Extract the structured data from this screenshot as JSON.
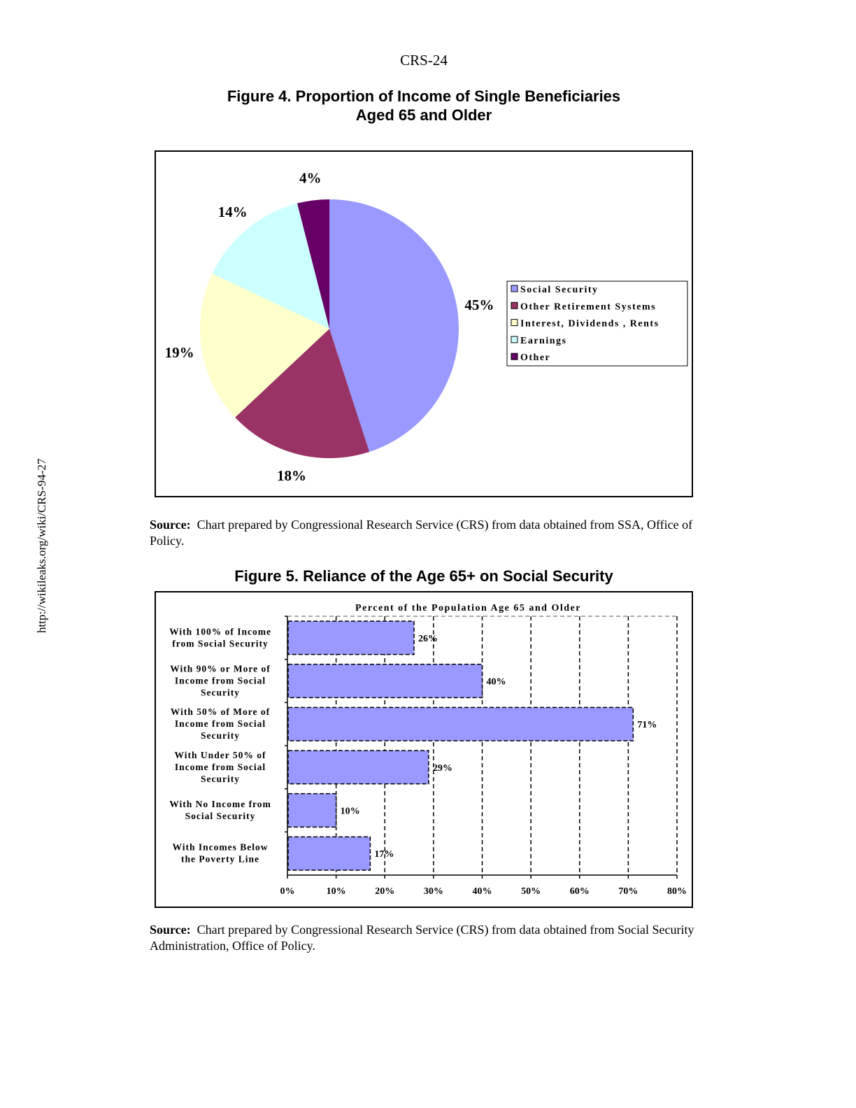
{
  "page_number": "CRS-24",
  "sidebar_url": "http://wikileaks.org/wiki/CRS-94-27",
  "figure4": {
    "title_line1": "Figure 4.  Proportion of Income of Single Beneficiaries",
    "title_line2": "Aged 65 and Older",
    "source_label": "Source:",
    "source_text": "Chart prepared by Congressional Research Service (CRS) from data obtained from SSA, Office of Policy."
  },
  "figure5": {
    "title": "Figure 5. Reliance of the Age 65+ on Social Security",
    "source_label": "Source:",
    "source_text": "Chart prepared by Congressional Research Service (CRS) from data obtained from Social Security Administration, Office of Policy."
  },
  "chart_data": [
    {
      "type": "pie",
      "title": "Figure 4.  Proportion of Income of Single Beneficiaries Aged 65 and Older",
      "legend_position": "right",
      "slices": [
        {
          "name": "Social Security",
          "value": 45,
          "label": "45%",
          "color": "#9999FF"
        },
        {
          "name": "Other Retirement Systems",
          "value": 18,
          "label": "18%",
          "color": "#993366"
        },
        {
          "name": "Interest, Dividends , Rents",
          "value": 19,
          "label": "19%",
          "color": "#FFFFCC"
        },
        {
          "name": "Earnings",
          "value": 14,
          "label": "14%",
          "color": "#CCFFFF"
        },
        {
          "name": "Other",
          "value": 4,
          "label": "4%",
          "color": "#660066"
        }
      ]
    },
    {
      "type": "bar",
      "orientation": "horizontal",
      "title": "Percent of the Population Age 65 and Older",
      "categories": [
        "With 100% of Income from Social Security",
        "With 90% or More of Income from Social Security",
        "With 50% of More of Income from Social Security",
        "With Under 50% of Income from Social Security",
        "With No Income from Social Security",
        "With Incomes Below the Poverty Line"
      ],
      "values": [
        26,
        40,
        71,
        29,
        10,
        17
      ],
      "data_labels": [
        "26%",
        "40%",
        "71%",
        "29%",
        "10%",
        "17%"
      ],
      "xlim": [
        0,
        80
      ],
      "xticks": [
        "0%",
        "10%",
        "20%",
        "30%",
        "40%",
        "50%",
        "60%",
        "70%",
        "80%"
      ],
      "grid": true,
      "bar_color": "#9999FF"
    }
  ]
}
